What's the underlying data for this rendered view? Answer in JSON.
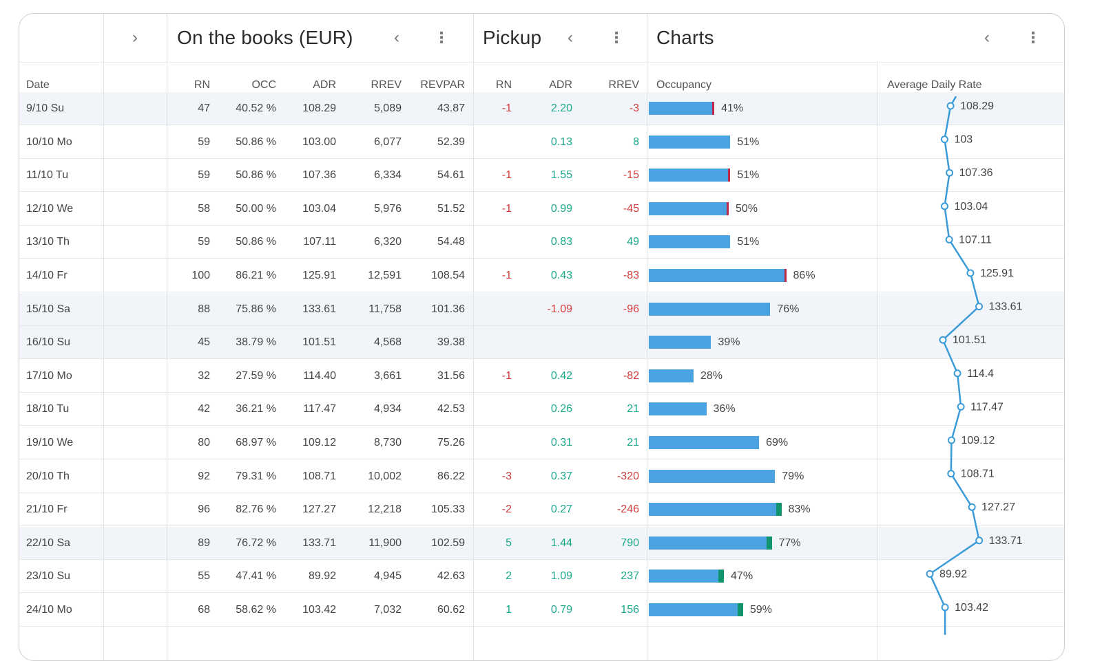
{
  "header": {
    "groups": [
      {
        "title": "On the books (EUR)"
      },
      {
        "title": "Pickup"
      },
      {
        "title": "Charts"
      }
    ],
    "icons": {
      "expand": "chevron-right-icon",
      "collapse": "chevron-left-icon",
      "menu": "more-vertical-icon"
    }
  },
  "columns": {
    "date": "Date",
    "otb": [
      "RN",
      "OCC",
      "ADR",
      "RREV",
      "REVPAR"
    ],
    "pickup": [
      "RN",
      "ADR",
      "RREV"
    ],
    "charts": [
      "Occupancy",
      "Average Daily Rate"
    ]
  },
  "colors": {
    "bar": "#4aa2e0",
    "negative": "#d23c3c",
    "positive": "#1aa88a",
    "line": "#3a9bd8",
    "highlight": "#f1f5fa"
  },
  "rows": [
    {
      "date": "9/10 Su",
      "rn": "47",
      "occ": "40.52 %",
      "adr": "108.29",
      "rrev": "5,089",
      "revpar": "43.87",
      "p_rn": "-1",
      "p_adr": "2.20",
      "p_rrev": "-3",
      "occ_pct": 41,
      "occ_label": "41%",
      "adr_val": 108.29,
      "adr_label": "108.29",
      "mark": "neg",
      "hl": true
    },
    {
      "date": "10/10 Mo",
      "rn": "59",
      "occ": "50.86 %",
      "adr": "103.00",
      "rrev": "6,077",
      "revpar": "52.39",
      "p_rn": "",
      "p_adr": "0.13",
      "p_rrev": "8",
      "occ_pct": 51,
      "occ_label": "51%",
      "adr_val": 103,
      "adr_label": "103",
      "mark": "",
      "hl": false
    },
    {
      "date": "11/10 Tu",
      "rn": "59",
      "occ": "50.86 %",
      "adr": "107.36",
      "rrev": "6,334",
      "revpar": "54.61",
      "p_rn": "-1",
      "p_adr": "1.55",
      "p_rrev": "-15",
      "occ_pct": 51,
      "occ_label": "51%",
      "adr_val": 107.36,
      "adr_label": "107.36",
      "mark": "neg",
      "hl": false
    },
    {
      "date": "12/10 We",
      "rn": "58",
      "occ": "50.00 %",
      "adr": "103.04",
      "rrev": "5,976",
      "revpar": "51.52",
      "p_rn": "-1",
      "p_adr": "0.99",
      "p_rrev": "-45",
      "occ_pct": 50,
      "occ_label": "50%",
      "adr_val": 103.04,
      "adr_label": "103.04",
      "mark": "neg",
      "hl": false
    },
    {
      "date": "13/10 Th",
      "rn": "59",
      "occ": "50.86 %",
      "adr": "107.11",
      "rrev": "6,320",
      "revpar": "54.48",
      "p_rn": "",
      "p_adr": "0.83",
      "p_rrev": "49",
      "occ_pct": 51,
      "occ_label": "51%",
      "adr_val": 107.11,
      "adr_label": "107.11",
      "mark": "",
      "hl": false
    },
    {
      "date": "14/10 Fr",
      "rn": "100",
      "occ": "86.21 %",
      "adr": "125.91",
      "rrev": "12,591",
      "revpar": "108.54",
      "p_rn": "-1",
      "p_adr": "0.43",
      "p_rrev": "-83",
      "occ_pct": 86,
      "occ_label": "86%",
      "adr_val": 125.91,
      "adr_label": "125.91",
      "mark": "neg",
      "hl": false
    },
    {
      "date": "15/10 Sa",
      "rn": "88",
      "occ": "75.86 %",
      "adr": "133.61",
      "rrev": "11,758",
      "revpar": "101.36",
      "p_rn": "",
      "p_adr": "-1.09",
      "p_rrev": "-96",
      "occ_pct": 76,
      "occ_label": "76%",
      "adr_val": 133.61,
      "adr_label": "133.61",
      "mark": "",
      "hl": true
    },
    {
      "date": "16/10 Su",
      "rn": "45",
      "occ": "38.79 %",
      "adr": "101.51",
      "rrev": "4,568",
      "revpar": "39.38",
      "p_rn": "",
      "p_adr": "",
      "p_rrev": "",
      "occ_pct": 39,
      "occ_label": "39%",
      "adr_val": 101.51,
      "adr_label": "101.51",
      "mark": "",
      "hl": true
    },
    {
      "date": "17/10 Mo",
      "rn": "32",
      "occ": "27.59 %",
      "adr": "114.40",
      "rrev": "3,661",
      "revpar": "31.56",
      "p_rn": "-1",
      "p_adr": "0.42",
      "p_rrev": "-82",
      "occ_pct": 28,
      "occ_label": "28%",
      "adr_val": 114.4,
      "adr_label": "114.4",
      "mark": "",
      "hl": false
    },
    {
      "date": "18/10 Tu",
      "rn": "42",
      "occ": "36.21 %",
      "adr": "117.47",
      "rrev": "4,934",
      "revpar": "42.53",
      "p_rn": "",
      "p_adr": "0.26",
      "p_rrev": "21",
      "occ_pct": 36,
      "occ_label": "36%",
      "adr_val": 117.47,
      "adr_label": "117.47",
      "mark": "",
      "hl": false
    },
    {
      "date": "19/10 We",
      "rn": "80",
      "occ": "68.97 %",
      "adr": "109.12",
      "rrev": "8,730",
      "revpar": "75.26",
      "p_rn": "",
      "p_adr": "0.31",
      "p_rrev": "21",
      "occ_pct": 69,
      "occ_label": "69%",
      "adr_val": 109.12,
      "adr_label": "109.12",
      "mark": "",
      "hl": false
    },
    {
      "date": "20/10 Th",
      "rn": "92",
      "occ": "79.31 %",
      "adr": "108.71",
      "rrev": "10,002",
      "revpar": "86.22",
      "p_rn": "-3",
      "p_adr": "0.37",
      "p_rrev": "-320",
      "occ_pct": 79,
      "occ_label": "79%",
      "adr_val": 108.71,
      "adr_label": "108.71",
      "mark": "",
      "hl": false
    },
    {
      "date": "21/10 Fr",
      "rn": "96",
      "occ": "82.76 %",
      "adr": "127.27",
      "rrev": "12,218",
      "revpar": "105.33",
      "p_rn": "-2",
      "p_adr": "0.27",
      "p_rrev": "-246",
      "occ_pct": 83,
      "occ_label": "83%",
      "adr_val": 127.27,
      "adr_label": "127.27",
      "mark": "pos",
      "hl": false
    },
    {
      "date": "22/10 Sa",
      "rn": "89",
      "occ": "76.72 %",
      "adr": "133.71",
      "rrev": "11,900",
      "revpar": "102.59",
      "p_rn": "5",
      "p_adr": "1.44",
      "p_rrev": "790",
      "occ_pct": 77,
      "occ_label": "77%",
      "adr_val": 133.71,
      "adr_label": "133.71",
      "mark": "pos",
      "hl": true
    },
    {
      "date": "23/10 Su",
      "rn": "55",
      "occ": "47.41 %",
      "adr": "89.92",
      "rrev": "4,945",
      "revpar": "42.63",
      "p_rn": "2",
      "p_adr": "1.09",
      "p_rrev": "237",
      "occ_pct": 47,
      "occ_label": "47%",
      "adr_val": 89.92,
      "adr_label": "89.92",
      "mark": "pos",
      "hl": false
    },
    {
      "date": "24/10 Mo",
      "rn": "68",
      "occ": "58.62 %",
      "adr": "103.42",
      "rrev": "7,032",
      "revpar": "60.62",
      "p_rn": "1",
      "p_adr": "0.79",
      "p_rrev": "156",
      "occ_pct": 59,
      "occ_label": "59%",
      "adr_val": 103.42,
      "adr_label": "103.42",
      "mark": "pos",
      "hl": false
    }
  ]
}
